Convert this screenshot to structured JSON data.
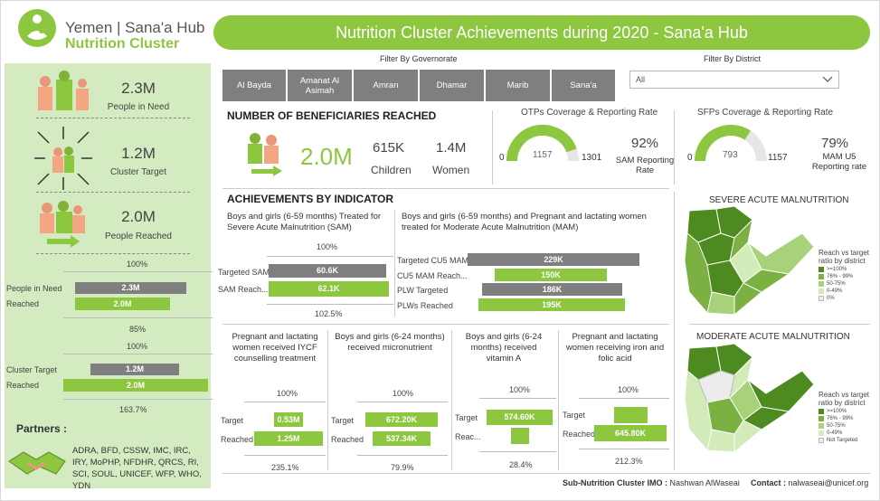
{
  "brand": {
    "line1": "Yemen | Sana'a Hub",
    "line2": "Nutrition Cluster"
  },
  "title": "Nutrition Cluster Achievements during 2020 - Sana'a Hub",
  "left": {
    "people_in_need": {
      "value": "2.3M",
      "label": "People in Need"
    },
    "cluster_target": {
      "value": "1.2M",
      "label": "Cluster Target"
    },
    "people_reached": {
      "value": "2.0M",
      "label": "People Reached"
    },
    "chart1": {
      "top_pct": "100%",
      "row1_label": "People in Need",
      "row1_value": "2.3M",
      "row2_label": "Reached",
      "row2_value": "2.0M",
      "bottom_pct": "85%"
    },
    "chart2": {
      "top_pct": "100%",
      "row1_label": "Cluster Target",
      "row1_value": "1.2M",
      "row2_label": "Reached",
      "row2_value": "2.0M",
      "bottom_pct": "163.7%"
    },
    "partners_title": "Partners :",
    "partners": "ADRA, BFD, CSSW, IMC, IRC, IRY, MoPHP, NFDHR, QRCS, RI, SCI, SOUL, UNICEF, WFP, WHO, YDN"
  },
  "filters": {
    "gov_label": "Filter By Governorate",
    "district_label": "Filter By District",
    "governorates": [
      "Al Bayda",
      "Amanat Al Asimah",
      "Amran",
      "Dhamar",
      "Marib",
      "Sana'a"
    ],
    "district_value": "All"
  },
  "beneficiaries": {
    "title": "NUMBER OF BENEFICIARIES REACHED",
    "total": "2.0M",
    "children_value": "615K",
    "children_label": "Children",
    "women_value": "1.4M",
    "women_label": "Women"
  },
  "otp": {
    "title": "OTPs Coverage & Reporting Rate",
    "min": "0",
    "value": "1157",
    "max": "1301",
    "rate": "92%",
    "rate_label": "SAM Reporting Rate",
    "fraction": 0.889
  },
  "sfp": {
    "title": "SFPs Coverage & Reporting Rate",
    "min": "0",
    "value": "793",
    "max": "1157",
    "rate": "79%",
    "rate_label": "MAM U5 Reporting rate",
    "fraction": 0.685
  },
  "indicators": {
    "title": "ACHIEVEMENTS BY INDICATOR",
    "sam": {
      "title": "Boys and girls (6-59 months) Treated for Severe Acute Malnutrition (SAM)",
      "top_pct": "100%",
      "row1_label": "Targeted SAM",
      "row1_value": "60.6K",
      "row2_label": "SAM Reach...",
      "row2_value": "62.1K",
      "bottom_pct": "102.5%"
    },
    "mam": {
      "title": "Boys and girls (6-59 months) and Pregnant and lactating women  treated for Moderate Acute Malnutrition (MAM)",
      "rows": [
        {
          "label": "Targeted CU5 MAM",
          "value": "229K"
        },
        {
          "label": "CU5 MAM Reach...",
          "value": "150K"
        },
        {
          "label": "PLW Targeted",
          "value": "186K"
        },
        {
          "label": "PLWs Reached",
          "value": "195K"
        }
      ]
    },
    "iycf": {
      "title": "Pregnant and lactating women received IYCF counselling treatment",
      "top_pct": "100%",
      "target_label": "Target",
      "target_value": "0.53M",
      "reached_label": "Reached",
      "reached_value": "1.25M",
      "bottom_pct": "235.1%"
    },
    "micro": {
      "title": "Boys and girls (6-24 months) received micronutrient",
      "top_pct": "100%",
      "target_label": "Target",
      "target_value": "672.20K",
      "reached_label": "Reached",
      "reached_value": "537.34K",
      "bottom_pct": "79.9%"
    },
    "vita": {
      "title": "Boys and girls (6-24 months) received vitamin A",
      "top_pct": "100%",
      "target_label": "Target",
      "target_value": "574.60K",
      "reached_label": "Reac...",
      "reached_value": "",
      "bottom_pct": "28.4%"
    },
    "iron": {
      "title": "Pregnant and lactating women receiving iron and folic acid",
      "top_pct": "100%",
      "target_label": "Target",
      "target_value": "",
      "reached_label": "Reached",
      "reached_value": "645.80K",
      "bottom_pct": "212.3%"
    }
  },
  "maps": {
    "sam_title": "SEVERE ACUTE MALNUTRITION",
    "mam_title": "MODERATE ACUTE MALNUTRITION",
    "legend_title": "Reach vs target ratio by district",
    "legend_sam": [
      ">=100%",
      "76% - 99%",
      "50-75%",
      "0-49%",
      "0%"
    ],
    "legend_mam": [
      ">=100%",
      "76% - 99%",
      "50-75%",
      "0-49%",
      "Not Targeted"
    ],
    "colors": [
      "#4d8a1f",
      "#7bb043",
      "#a8d27a",
      "#d3ebb8",
      "#ececec"
    ]
  },
  "footer": {
    "imo_label": "Sub-Nutrition Cluster IMO :",
    "imo_name": "Nashwan AlWaseai",
    "contact_label": "Contact :",
    "contact_value": "nalwaseai@unicef.org"
  },
  "colors": {
    "green": "#8dc63f",
    "gray": "#7f7f7f",
    "panel": "#d4eac0"
  }
}
